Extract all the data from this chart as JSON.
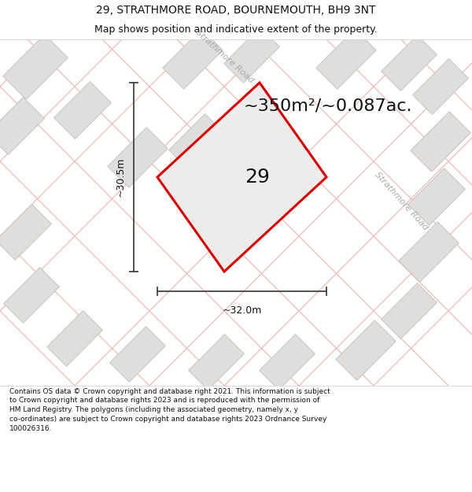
{
  "title_line1": "29, STRATHMORE ROAD, BOURNEMOUTH, BH9 3NT",
  "title_line2": "Map shows position and indicative extent of the property.",
  "area_text": "~350m²/~0.087ac.",
  "dim_height": "~30.5m",
  "dim_width": "~32.0m",
  "label_29": "29",
  "road_label_top": "Strathmore Road",
  "road_label_right": "Strathmore Road",
  "footer_text": "Contains OS data © Crown copyright and database right 2021. This information is subject to Crown copyright and database rights 2023 and is reproduced with the permission of HM Land Registry. The polygons (including the associated geometry, namely x, y co-ordinates) are subject to Crown copyright and database rights 2023 Ordnance Survey 100026316.",
  "map_bg": "#f5f3f0",
  "building_fill": "#e0dedd",
  "building_edge": "#c8c4c0",
  "road_line_color": "#f0b8b8",
  "plot_fill": "#eeeceb",
  "plot_edge": "#dd0000",
  "dim_line_color": "#444444",
  "title_bg": "#ffffff",
  "footer_bg": "#ffffff",
  "title_fontsize": 10,
  "subtitle_fontsize": 9,
  "area_fontsize": 16,
  "dim_fontsize": 9,
  "label_fontsize": 18,
  "road_fontsize": 8,
  "footer_fontsize": 6.5
}
